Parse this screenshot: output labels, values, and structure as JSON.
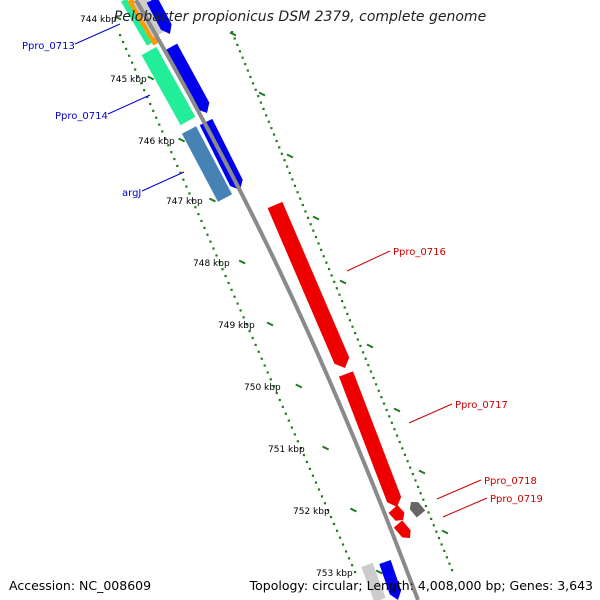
{
  "title": "Pelobacter propionicus DSM 2379, complete genome",
  "accession": "Accession: NC_008609",
  "summary": "Topology: circular; Length: 4,008,000 bp; Genes: 3,643",
  "colors": {
    "backbone": "#8a8a8a",
    "tick": "#1f7a1f",
    "label_blue": "#0000cc",
    "label_red": "#cc0000",
    "blue": "#0000ee",
    "red": "#ee0000",
    "green": "#22ee99",
    "orange": "#ff9900",
    "steel": "#4682b4",
    "gray": "#666666",
    "light_gray": "#cccccc"
  },
  "ticks": [
    "744 kbp",
    "745 kbp",
    "746 kbp",
    "747 kbp",
    "748 kbp",
    "749 kbp",
    "750 kbp",
    "751 kbp",
    "752 kbp",
    "753 kbp"
  ],
  "genes": [
    {
      "name": "Ppro_0713",
      "color": "label_blue"
    },
    {
      "name": "Ppro_0714",
      "color": "label_blue"
    },
    {
      "name": "argJ",
      "color": "label_blue"
    },
    {
      "name": "Ppro_0716",
      "color": "label_red"
    },
    {
      "name": "Ppro_0717",
      "color": "label_red"
    },
    {
      "name": "Ppro_0718",
      "color": "label_red"
    },
    {
      "name": "Ppro_0719",
      "color": "label_red"
    }
  ]
}
